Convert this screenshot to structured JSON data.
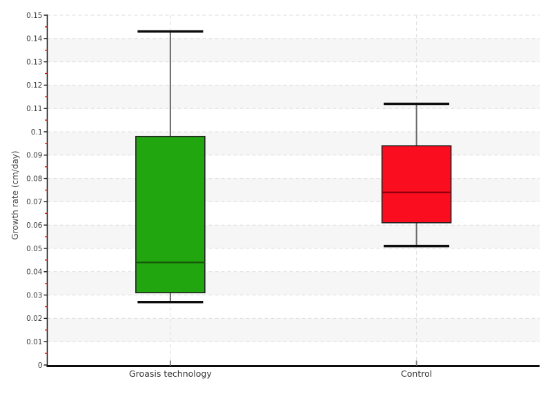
{
  "page": {
    "background": "#ffffff"
  },
  "chart_data": {
    "type": "boxplot",
    "title": "",
    "xlabel": "",
    "ylabel": "Growth rate (cm/day)",
    "ylim": [
      0,
      0.15
    ],
    "y_tick_step": 0.01,
    "y_minor_tick_step": 0.005,
    "y_tick_labels": [
      "0",
      "0.01",
      "0.02",
      "0.03",
      "0.04",
      "0.05",
      "0.06",
      "0.07",
      "0.08",
      "0.09",
      "0.1",
      "0.11",
      "0.12",
      "0.13",
      "0.14",
      "0.15"
    ],
    "categories": [
      "Groasis technology",
      "Control"
    ],
    "series": [
      {
        "name": "Groasis technology",
        "whisker_low": 0.027,
        "q1": 0.031,
        "median": 0.044,
        "q3": 0.098,
        "whisker_high": 0.143,
        "fill": "#22A60F",
        "median_color": "#145708"
      },
      {
        "name": "Control",
        "whisker_low": 0.051,
        "q1": 0.061,
        "median": 0.074,
        "q3": 0.094,
        "whisker_high": 0.112,
        "fill": "#FA0D1E",
        "median_color": "#8E0010"
      }
    ],
    "legend": {
      "visible": false
    },
    "grid": {
      "horizontal_dashed": true,
      "vertical_dashed_at_categories": true,
      "alternating_bands": true
    },
    "colors": {
      "band": "#f6f6f6",
      "grid": "#dcdcdc",
      "y_axis": "#1a1a1a",
      "x_axis": "#0d0d0d",
      "major_tick": "#1a1a1a",
      "minor_tick": "#d40f00",
      "category_tick": "#777777",
      "whisker_line": "#666666",
      "whisker_cap": "#0d0d0d",
      "box_border": "#212121"
    }
  }
}
